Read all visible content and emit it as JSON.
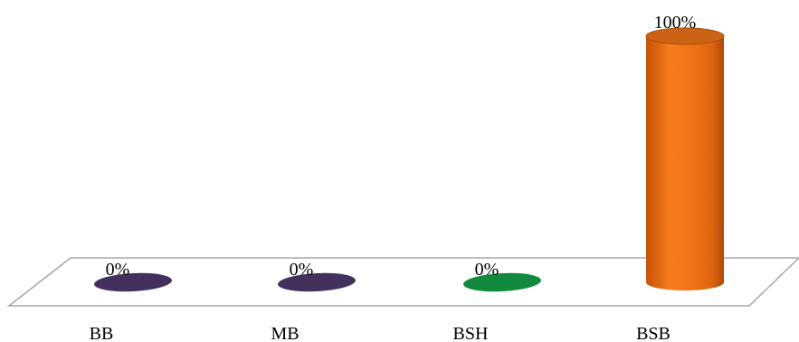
{
  "chart_data": {
    "type": "bar",
    "style": "3d-cylinder",
    "categories": [
      "BB",
      "MB",
      "BSH",
      "BSB"
    ],
    "values": [
      0,
      0,
      0,
      100
    ],
    "data_labels": [
      "0%",
      "0%",
      "0%",
      "100%"
    ],
    "colors": [
      "#41315c",
      "#41315c",
      "#118a3e",
      "#f07417"
    ],
    "ylim": [
      0,
      100
    ],
    "unit": "%",
    "grid": false,
    "legend": "none",
    "title": "",
    "xlabel": "",
    "ylabel": ""
  }
}
